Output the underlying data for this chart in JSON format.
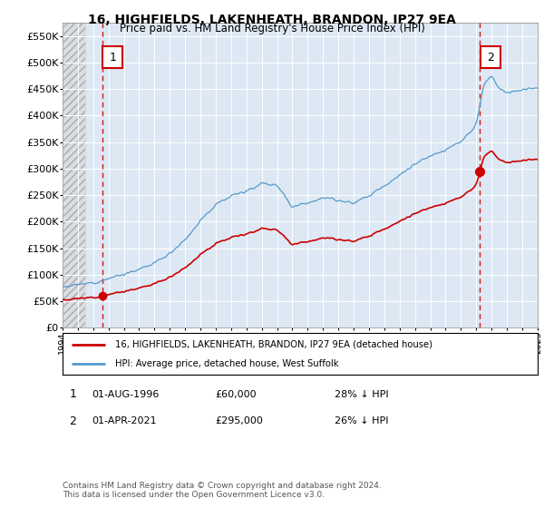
{
  "title": "16, HIGHFIELDS, LAKENHEATH, BRANDON, IP27 9EA",
  "subtitle": "Price paid vs. HM Land Registry's House Price Index (HPI)",
  "red_label": "16, HIGHFIELDS, LAKENHEATH, BRANDON, IP27 9EA (detached house)",
  "blue_label": "HPI: Average price, detached house, West Suffolk",
  "annotation1_date": "01-AUG-1996",
  "annotation1_price": "£60,000",
  "annotation1_note": "28% ↓ HPI",
  "annotation2_date": "01-APR-2021",
  "annotation2_price": "£295,000",
  "annotation2_note": "26% ↓ HPI",
  "footnote": "Contains HM Land Registry data © Crown copyright and database right 2024.\nThis data is licensed under the Open Government Licence v3.0.",
  "red_color": "#cc0000",
  "blue_color": "#5599cc",
  "bg_chart_color": "#dde8f4",
  "ylim": [
    0,
    575000
  ],
  "yticks": [
    0,
    50000,
    100000,
    150000,
    200000,
    250000,
    300000,
    350000,
    400000,
    450000,
    500000,
    550000
  ],
  "x_start_year": 1994,
  "x_end_year": 2025,
  "sale1_year": 1996.583,
  "sale1_price": 60000,
  "sale2_year": 2021.25,
  "sale2_price": 295000
}
